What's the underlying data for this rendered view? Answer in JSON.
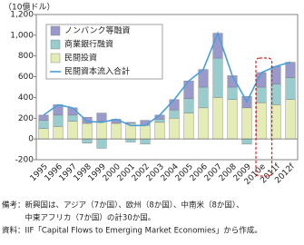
{
  "chart_data": {
    "type": "bar",
    "stacked": true,
    "y_label": "（10億ドル）",
    "categories": [
      "1995",
      "1996",
      "1997",
      "1998",
      "1999",
      "2000",
      "2001",
      "2002",
      "2003",
      "2004",
      "2005",
      "2006",
      "2007",
      "2008",
      "2009",
      "2010e",
      "2011f",
      "2012f"
    ],
    "series": [
      {
        "name": "ノンバンク等融資",
        "color": "#9999cc",
        "values": [
          50,
          100,
          70,
          60,
          80,
          40,
          10,
          50,
          40,
          100,
          170,
          170,
          240,
          110,
          110,
          140,
          170,
          150
        ]
      },
      {
        "name": "商業銀行融資",
        "color": "#99cccc",
        "values": [
          80,
          110,
          60,
          -40,
          -90,
          0,
          -30,
          -50,
          30,
          80,
          140,
          200,
          380,
          120,
          -50,
          150,
          200,
          210
        ]
      },
      {
        "name": "民間投資",
        "color": "#e4ebb5",
        "values": [
          100,
          120,
          170,
          150,
          170,
          150,
          150,
          130,
          160,
          200,
          250,
          300,
          400,
          380,
          300,
          350,
          330,
          380
        ]
      },
      {
        "name": "民間資本流入合計",
        "type": "line",
        "color": "#4a9fd8",
        "values": [
          230,
          330,
          300,
          170,
          160,
          190,
          130,
          130,
          230,
          380,
          560,
          670,
          1020,
          610,
          360,
          640,
          700,
          740
        ]
      }
    ],
    "ylim": [
      -200,
      1200
    ],
    "yticks": [
      -200,
      0,
      200,
      400,
      600,
      800,
      {
        "value": 1000,
        "label": "1,000"
      },
      {
        "value": 1200,
        "label": "1,200"
      }
    ],
    "legend": "upper left",
    "notes": [
      "備考：新興国は、アジア（7か国）、欧州（8か国）、中南米（8か国）、",
      "　　　中東アフリカ（7か国）の計30か国。",
      "資料：IIF「Capital Flows to Emerging Market Economies」から作成。"
    ]
  }
}
